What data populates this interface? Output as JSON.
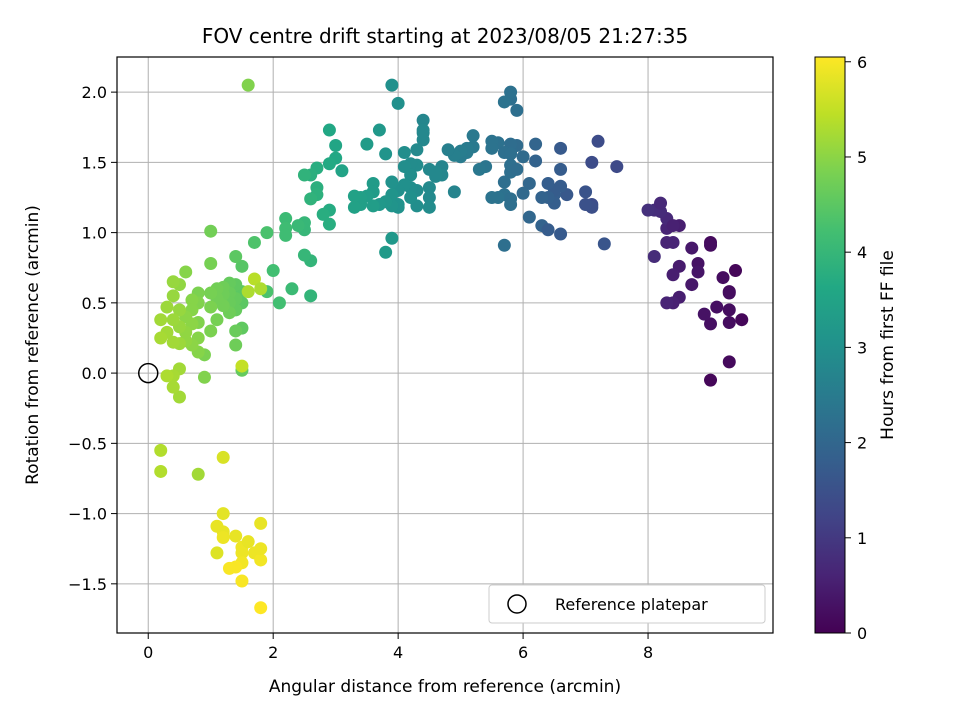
{
  "chart_data": {
    "type": "scatter",
    "title": "FOV centre drift starting at 2023/08/05 21:27:35",
    "xlabel": "Angular distance from reference (arcmin)",
    "ylabel": "Rotation from reference (arcmin)",
    "xlim": [
      -0.5,
      10.0
    ],
    "ylim": [
      -1.85,
      2.25
    ],
    "xticks": [
      0,
      2,
      4,
      6,
      8
    ],
    "yticks": [
      -1.5,
      -1.0,
      -0.5,
      0.0,
      0.5,
      1.0,
      1.5,
      2.0
    ],
    "xtick_labels": [
      "0",
      "2",
      "4",
      "6",
      "8"
    ],
    "ytick_labels": [
      "−1.5",
      "−1.0",
      "−0.5",
      "0.0",
      "0.5",
      "1.0",
      "1.5",
      "2.0"
    ],
    "grid": true,
    "colormap": "viridis",
    "colorbar": {
      "label": "Hours from first FF file",
      "range": [
        0,
        6.05
      ],
      "ticks": [
        0,
        1,
        2,
        3,
        4,
        5,
        6
      ],
      "tick_labels": [
        "0",
        "1",
        "2",
        "3",
        "4",
        "5",
        "6"
      ]
    },
    "reference_point": {
      "x": 0.0,
      "y": 0.0
    },
    "legend": {
      "entries": [
        "Reference platepar"
      ],
      "placement": "lower-right"
    },
    "points": [
      [
        9.0,
        -0.05,
        0.1
      ],
      [
        9.3,
        0.08,
        0.15
      ],
      [
        9.5,
        0.38,
        0.1
      ],
      [
        9.3,
        0.36,
        0.2
      ],
      [
        9.0,
        0.35,
        0.25
      ],
      [
        9.3,
        0.45,
        0.2
      ],
      [
        8.9,
        0.42,
        0.3
      ],
      [
        9.1,
        0.47,
        0.25
      ],
      [
        9.3,
        0.58,
        0.15
      ],
      [
        9.3,
        0.57,
        0.2
      ],
      [
        9.4,
        0.73,
        0.1
      ],
      [
        9.0,
        0.93,
        0.15
      ],
      [
        9.0,
        0.91,
        0.2
      ],
      [
        9.2,
        0.68,
        0.2
      ],
      [
        8.8,
        0.78,
        0.3
      ],
      [
        8.8,
        0.72,
        0.35
      ],
      [
        8.7,
        0.63,
        0.4
      ],
      [
        8.7,
        0.89,
        0.4
      ],
      [
        8.5,
        0.54,
        0.5
      ],
      [
        8.4,
        0.5,
        0.55
      ],
      [
        8.3,
        0.5,
        0.6
      ],
      [
        8.5,
        0.76,
        0.45
      ],
      [
        8.4,
        0.7,
        0.5
      ],
      [
        8.5,
        1.05,
        0.5
      ],
      [
        8.4,
        0.93,
        0.6
      ],
      [
        8.3,
        0.93,
        0.6
      ],
      [
        8.3,
        1.03,
        0.6
      ],
      [
        8.3,
        1.1,
        0.7
      ],
      [
        8.4,
        1.05,
        0.55
      ],
      [
        8.2,
        1.15,
        0.75
      ],
      [
        8.1,
        1.16,
        0.8
      ],
      [
        8.0,
        1.16,
        0.85
      ],
      [
        8.2,
        1.21,
        0.7
      ],
      [
        8.1,
        0.83,
        0.75
      ],
      [
        7.5,
        1.47,
        1.35
      ],
      [
        7.1,
        1.5,
        1.4
      ],
      [
        7.2,
        1.65,
        1.4
      ],
      [
        7.3,
        0.92,
        1.6
      ],
      [
        7.1,
        1.2,
        1.4
      ],
      [
        7.1,
        1.18,
        1.45
      ],
      [
        7.0,
        1.2,
        1.5
      ],
      [
        7.0,
        1.29,
        1.55
      ],
      [
        6.7,
        1.27,
        1.65
      ],
      [
        6.6,
        1.6,
        1.7
      ],
      [
        6.6,
        1.45,
        1.75
      ],
      [
        6.6,
        1.33,
        1.75
      ],
      [
        6.5,
        1.27,
        1.8
      ],
      [
        6.5,
        1.21,
        1.8
      ],
      [
        6.5,
        1.3,
        1.75
      ],
      [
        6.4,
        1.35,
        1.8
      ],
      [
        6.4,
        1.25,
        1.85
      ],
      [
        6.3,
        1.25,
        1.9
      ],
      [
        6.3,
        1.05,
        1.9
      ],
      [
        6.2,
        1.51,
        1.9
      ],
      [
        6.2,
        1.63,
        1.95
      ],
      [
        6.1,
        1.35,
        2.0
      ],
      [
        6.1,
        1.11,
        2.0
      ],
      [
        6.6,
        0.99,
        1.7
      ],
      [
        6.4,
        1.02,
        1.75
      ],
      [
        6.0,
        1.54,
        2.1
      ],
      [
        6.0,
        1.28,
        2.05
      ],
      [
        5.9,
        1.62,
        2.1
      ],
      [
        5.8,
        1.58,
        2.15
      ],
      [
        5.8,
        1.48,
        2.2
      ],
      [
        5.8,
        1.43,
        2.2
      ],
      [
        5.7,
        1.36,
        2.2
      ],
      [
        5.7,
        1.27,
        2.25
      ],
      [
        5.8,
        1.24,
        2.2
      ],
      [
        5.6,
        1.25,
        2.3
      ],
      [
        5.5,
        1.25,
        2.3
      ],
      [
        5.6,
        1.64,
        2.25
      ],
      [
        5.5,
        1.65,
        2.3
      ],
      [
        5.8,
        1.63,
        2.15
      ],
      [
        5.7,
        1.57,
        2.2
      ],
      [
        5.8,
        1.56,
        2.2
      ],
      [
        5.9,
        1.45,
        2.15
      ],
      [
        5.9,
        1.87,
        2.2
      ],
      [
        5.8,
        1.95,
        2.2
      ],
      [
        5.8,
        2.0,
        2.25
      ],
      [
        5.7,
        1.93,
        2.3
      ],
      [
        5.7,
        0.91,
        2.2
      ],
      [
        5.8,
        1.2,
        2.2
      ],
      [
        5.5,
        1.6,
        2.3
      ],
      [
        5.4,
        1.47,
        2.35
      ],
      [
        5.3,
        1.45,
        2.4
      ],
      [
        5.2,
        1.61,
        2.45
      ],
      [
        5.2,
        1.69,
        2.45
      ],
      [
        5.1,
        1.57,
        2.5
      ],
      [
        5.1,
        1.6,
        2.5
      ],
      [
        5.0,
        1.54,
        2.5
      ],
      [
        5.0,
        1.58,
        2.55
      ],
      [
        4.9,
        1.55,
        2.6
      ],
      [
        4.9,
        1.29,
        2.7
      ],
      [
        4.8,
        1.59,
        2.6
      ],
      [
        4.7,
        1.47,
        2.7
      ],
      [
        4.7,
        1.41,
        2.75
      ],
      [
        4.6,
        1.43,
        2.8
      ],
      [
        4.6,
        1.4,
        2.8
      ],
      [
        4.5,
        1.45,
        2.8
      ],
      [
        4.5,
        1.32,
        2.85
      ],
      [
        4.5,
        1.25,
        2.85
      ],
      [
        4.5,
        1.18,
        2.9
      ],
      [
        4.4,
        1.66,
        2.8
      ],
      [
        4.4,
        1.71,
        2.8
      ],
      [
        4.4,
        1.8,
        2.75
      ],
      [
        4.3,
        1.59,
        2.85
      ],
      [
        4.3,
        1.48,
        2.9
      ],
      [
        4.3,
        1.3,
        2.9
      ],
      [
        4.3,
        1.19,
        2.95
      ],
      [
        4.2,
        1.49,
        2.9
      ],
      [
        4.2,
        1.41,
        2.95
      ],
      [
        4.2,
        1.32,
        2.95
      ],
      [
        4.2,
        1.25,
        3.0
      ],
      [
        4.1,
        1.57,
        2.95
      ],
      [
        4.1,
        1.47,
        2.95
      ],
      [
        4.1,
        1.34,
        3.0
      ],
      [
        4.0,
        1.3,
        3.0
      ],
      [
        4.0,
        1.2,
        3.05
      ],
      [
        4.0,
        1.18,
        3.05
      ],
      [
        3.9,
        1.36,
        3.05
      ],
      [
        3.9,
        1.27,
        3.1
      ],
      [
        3.9,
        1.19,
        3.1
      ],
      [
        3.9,
        0.96,
        3.2
      ],
      [
        3.8,
        0.86,
        3.25
      ],
      [
        3.8,
        1.56,
        3.1
      ],
      [
        3.8,
        1.22,
        3.15
      ],
      [
        4.0,
        1.92,
        3.0
      ],
      [
        3.9,
        2.05,
        3.0
      ],
      [
        4.4,
        1.73,
        2.8
      ],
      [
        3.7,
        1.2,
        3.2
      ],
      [
        3.7,
        1.73,
        3.2
      ],
      [
        3.6,
        1.35,
        3.3
      ],
      [
        3.6,
        1.29,
        3.3
      ],
      [
        3.6,
        1.19,
        3.35
      ],
      [
        3.5,
        1.63,
        3.3
      ],
      [
        3.5,
        1.26,
        3.35
      ],
      [
        3.4,
        1.2,
        3.4
      ],
      [
        3.4,
        1.25,
        3.4
      ],
      [
        3.3,
        1.18,
        3.45
      ],
      [
        3.3,
        1.26,
        3.45
      ],
      [
        3.1,
        1.44,
        3.5
      ],
      [
        3.0,
        1.53,
        3.6
      ],
      [
        3.0,
        1.62,
        3.55
      ],
      [
        2.9,
        1.73,
        3.6
      ],
      [
        2.9,
        1.49,
        3.65
      ],
      [
        2.9,
        1.16,
        3.7
      ],
      [
        2.9,
        1.06,
        3.75
      ],
      [
        2.8,
        1.13,
        3.75
      ],
      [
        2.7,
        1.46,
        3.75
      ],
      [
        2.7,
        1.32,
        3.8
      ],
      [
        2.7,
        1.27,
        3.85
      ],
      [
        2.6,
        1.41,
        3.8
      ],
      [
        2.6,
        1.24,
        3.9
      ],
      [
        2.5,
        1.41,
        3.9
      ],
      [
        2.5,
        1.07,
        4.0
      ],
      [
        2.5,
        1.02,
        4.0
      ],
      [
        2.4,
        1.05,
        4.05
      ],
      [
        2.6,
        0.8,
        3.95
      ],
      [
        2.5,
        0.84,
        4.0
      ],
      [
        2.6,
        0.55,
        3.95
      ],
      [
        2.3,
        0.6,
        4.1
      ],
      [
        2.2,
        1.1,
        4.1
      ],
      [
        2.2,
        1.03,
        4.15
      ],
      [
        2.2,
        0.98,
        4.15
      ],
      [
        2.1,
        0.5,
        4.2
      ],
      [
        2.0,
        0.73,
        4.2
      ],
      [
        1.9,
        0.58,
        4.3
      ],
      [
        1.7,
        0.93,
        4.35
      ],
      [
        1.9,
        1.0,
        4.3
      ],
      [
        1.5,
        0.76,
        4.45
      ],
      [
        1.5,
        0.58,
        4.5
      ],
      [
        1.5,
        0.5,
        4.5
      ],
      [
        1.5,
        0.32,
        4.55
      ],
      [
        1.5,
        0.02,
        4.6
      ],
      [
        1.4,
        0.83,
        4.5
      ],
      [
        1.4,
        0.63,
        4.55
      ],
      [
        1.4,
        0.53,
        4.6
      ],
      [
        1.4,
        0.45,
        4.6
      ],
      [
        1.4,
        0.3,
        4.65
      ],
      [
        1.4,
        0.2,
        4.7
      ],
      [
        1.3,
        0.64,
        4.6
      ],
      [
        1.3,
        0.57,
        4.65
      ],
      [
        1.3,
        0.5,
        4.65
      ],
      [
        1.3,
        0.43,
        4.7
      ],
      [
        1.2,
        0.61,
        4.7
      ],
      [
        1.2,
        0.56,
        4.7
      ],
      [
        1.2,
        0.48,
        4.75
      ],
      [
        1.1,
        0.6,
        4.75
      ],
      [
        1.1,
        0.53,
        4.75
      ],
      [
        1.1,
        0.38,
        4.8
      ],
      [
        1.0,
        0.57,
        4.8
      ],
      [
        1.0,
        0.47,
        4.85
      ],
      [
        1.0,
        0.3,
        4.85
      ],
      [
        1.0,
        0.78,
        4.8
      ],
      [
        1.0,
        1.01,
        4.75
      ],
      [
        0.9,
        0.13,
        4.85
      ],
      [
        0.9,
        -0.03,
        4.9
      ],
      [
        0.8,
        0.57,
        4.85
      ],
      [
        0.8,
        0.5,
        4.9
      ],
      [
        0.8,
        0.36,
        4.9
      ],
      [
        0.8,
        0.25,
        4.95
      ],
      [
        0.8,
        0.15,
        4.95
      ],
      [
        0.7,
        0.52,
        4.95
      ],
      [
        0.7,
        0.45,
        4.95
      ],
      [
        0.7,
        0.35,
        5.0
      ],
      [
        0.7,
        0.2,
        5.0
      ],
      [
        0.6,
        0.4,
        5.0
      ],
      [
        0.6,
        0.29,
        5.05
      ],
      [
        0.6,
        0.23,
        5.05
      ],
      [
        0.6,
        0.72,
        4.95
      ],
      [
        0.5,
        0.63,
        5.05
      ],
      [
        0.5,
        0.45,
        5.1
      ],
      [
        0.5,
        0.33,
        5.1
      ],
      [
        0.5,
        0.21,
        5.15
      ],
      [
        0.5,
        0.03,
        5.2
      ],
      [
        0.5,
        -0.17,
        5.2
      ],
      [
        0.4,
        0.65,
        5.1
      ],
      [
        0.4,
        0.55,
        5.1
      ],
      [
        0.4,
        0.38,
        5.15
      ],
      [
        0.4,
        0.22,
        5.2
      ],
      [
        0.4,
        -0.02,
        5.25
      ],
      [
        0.4,
        -0.1,
        5.25
      ],
      [
        0.3,
        0.47,
        5.15
      ],
      [
        0.3,
        0.29,
        5.2
      ],
      [
        0.3,
        -0.02,
        5.3
      ],
      [
        0.2,
        0.38,
        5.2
      ],
      [
        0.2,
        0.25,
        5.25
      ],
      [
        0.2,
        -0.55,
        5.35
      ],
      [
        0.2,
        -0.7,
        5.35
      ],
      [
        0.8,
        -0.72,
        5.2
      ],
      [
        1.6,
        2.05,
        4.9
      ],
      [
        1.7,
        0.67,
        5.4
      ],
      [
        1.5,
        0.05,
        5.5
      ],
      [
        1.6,
        0.58,
        5.3
      ],
      [
        1.8,
        0.6,
        5.3
      ],
      [
        1.2,
        -0.6,
        5.7
      ],
      [
        1.2,
        -1.0,
        5.8
      ],
      [
        1.1,
        -1.09,
        5.85
      ],
      [
        1.2,
        -1.13,
        5.85
      ],
      [
        1.2,
        -1.17,
        5.9
      ],
      [
        1.4,
        -1.16,
        5.85
      ],
      [
        1.5,
        -1.24,
        5.9
      ],
      [
        1.5,
        -1.28,
        5.9
      ],
      [
        1.6,
        -1.2,
        5.85
      ],
      [
        1.5,
        -1.35,
        5.95
      ],
      [
        1.4,
        -1.38,
        6.0
      ],
      [
        1.3,
        -1.39,
        6.0
      ],
      [
        1.5,
        -1.48,
        6.0
      ],
      [
        1.7,
        -1.28,
        5.9
      ],
      [
        1.8,
        -1.33,
        5.95
      ],
      [
        1.8,
        -1.25,
        5.9
      ],
      [
        1.8,
        -1.07,
        5.85
      ],
      [
        1.8,
        -1.67,
        6.05
      ],
      [
        1.1,
        -1.28,
        5.75
      ]
    ]
  }
}
